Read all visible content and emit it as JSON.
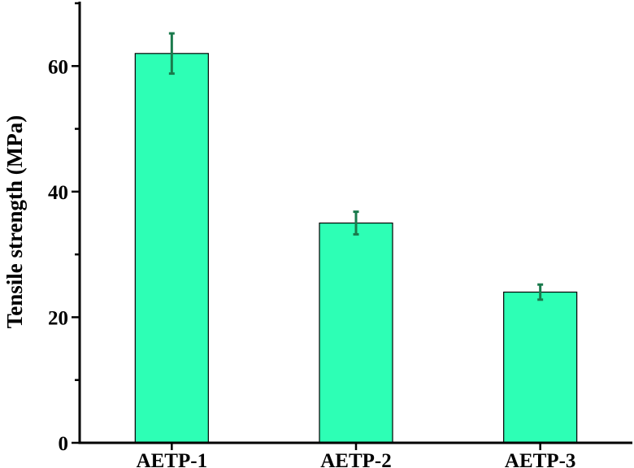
{
  "chart_data": {
    "type": "bar",
    "categories": [
      "AETP-1",
      "AETP-2",
      "AETP-3"
    ],
    "values": [
      62,
      35,
      24
    ],
    "errors": [
      3.2,
      1.8,
      1.2
    ],
    "xlabel": "",
    "ylabel": "Tensile strength (MPa)",
    "ylim": [
      0,
      70
    ],
    "yticks": [
      0,
      20,
      40,
      60
    ],
    "grid": false,
    "colors": {
      "bar_fill": "#2dffb5",
      "error_bar": "#1a7a4c",
      "axis": "#000000"
    }
  }
}
